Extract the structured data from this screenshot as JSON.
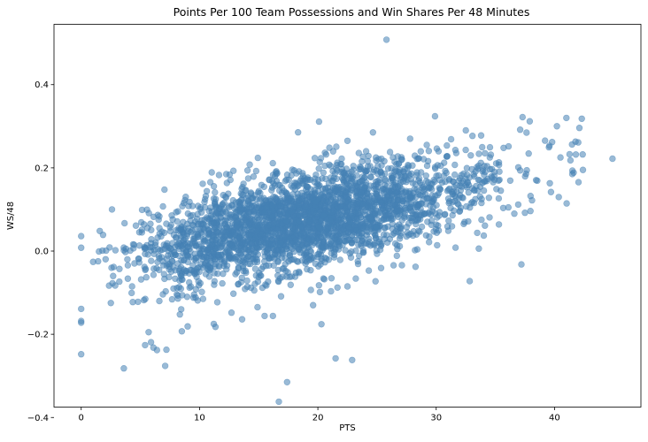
{
  "chart_data": {
    "type": "scatter",
    "title": "Points Per 100 Team Possessions and Win Shares Per 48 Minutes",
    "xlabel": "PTS",
    "ylabel": "WS/48",
    "xlim": [
      -2.3,
      47.3
    ],
    "ylim": [
      -0.375,
      0.545
    ],
    "x_ticks": [
      0,
      10,
      20,
      30,
      40
    ],
    "x_tick_labels": [
      "0",
      "10",
      "20",
      "30",
      "40"
    ],
    "y_ticks": [
      -0.4,
      -0.2,
      0.0,
      0.2,
      0.4
    ],
    "y_tick_labels": [
      "−0.4",
      "−0.2",
      "0.0",
      "0.2",
      "0.4"
    ],
    "grid": false,
    "marker_color": "#4682b4",
    "marker_alpha": 0.55,
    "cloud": {
      "trend_intercept": -0.035,
      "trend_slope": 0.0058,
      "x_center": 18,
      "x_spread": 6.5,
      "y_spread": 0.055,
      "x_min": 1,
      "x_max": 44,
      "count": 3000
    },
    "points": [
      {
        "x": 25.8,
        "y": 0.508
      },
      {
        "x": 16.7,
        "y": -0.362
      },
      {
        "x": 17.4,
        "y": -0.315
      },
      {
        "x": 3.6,
        "y": -0.282
      },
      {
        "x": 21.5,
        "y": -0.258
      },
      {
        "x": 22.9,
        "y": -0.262
      },
      {
        "x": 0.0,
        "y": -0.248
      },
      {
        "x": 0.0,
        "y": -0.172
      },
      {
        "x": 0.0,
        "y": -0.168
      },
      {
        "x": 0.0,
        "y": -0.139
      },
      {
        "x": 0.0,
        "y": 0.008
      },
      {
        "x": 0.0,
        "y": 0.036
      },
      {
        "x": 5.4,
        "y": -0.226
      },
      {
        "x": 5.9,
        "y": -0.219
      },
      {
        "x": 6.1,
        "y": -0.232
      },
      {
        "x": 6.4,
        "y": -0.238
      },
      {
        "x": 7.2,
        "y": -0.237
      },
      {
        "x": 7.1,
        "y": -0.276
      },
      {
        "x": 5.7,
        "y": -0.195
      },
      {
        "x": 8.5,
        "y": -0.193
      },
      {
        "x": 9.0,
        "y": -0.181
      },
      {
        "x": 11.2,
        "y": -0.175
      },
      {
        "x": 2.6,
        "y": 0.1
      },
      {
        "x": 1.5,
        "y": -0.001
      },
      {
        "x": 2.1,
        "y": 0.001
      },
      {
        "x": 2.5,
        "y": -0.125
      },
      {
        "x": 2.7,
        "y": -0.06
      },
      {
        "x": 3.9,
        "y": -0.02
      },
      {
        "x": 4.3,
        "y": -0.085
      },
      {
        "x": 4.8,
        "y": -0.122
      },
      {
        "x": 20.1,
        "y": 0.311
      },
      {
        "x": 29.9,
        "y": 0.324
      },
      {
        "x": 27.8,
        "y": 0.27
      },
      {
        "x": 32.5,
        "y": 0.29
      },
      {
        "x": 37.3,
        "y": 0.322
      },
      {
        "x": 37.9,
        "y": 0.312
      },
      {
        "x": 40.2,
        "y": 0.3
      },
      {
        "x": 41.0,
        "y": 0.32
      },
      {
        "x": 42.3,
        "y": 0.318
      },
      {
        "x": 44.9,
        "y": 0.222
      },
      {
        "x": 42.1,
        "y": 0.296
      },
      {
        "x": 41.8,
        "y": 0.232
      },
      {
        "x": 41.5,
        "y": 0.185
      },
      {
        "x": 42.4,
        "y": 0.195
      },
      {
        "x": 40.5,
        "y": 0.225
      },
      {
        "x": 39.8,
        "y": 0.262
      },
      {
        "x": 37.2,
        "y": -0.032
      },
      {
        "x": 33.6,
        "y": 0.006
      },
      {
        "x": 35.3,
        "y": 0.064
      },
      {
        "x": 36.1,
        "y": 0.105
      },
      {
        "x": 37.5,
        "y": 0.092
      },
      {
        "x": 38.1,
        "y": 0.122
      },
      {
        "x": 39.7,
        "y": 0.142
      },
      {
        "x": 39.6,
        "y": 0.163
      },
      {
        "x": 28.4,
        "y": 0.004
      },
      {
        "x": 27.1,
        "y": -0.034
      },
      {
        "x": 24.3,
        "y": -0.047
      },
      {
        "x": 22.5,
        "y": -0.085
      },
      {
        "x": 23.2,
        "y": -0.066
      },
      {
        "x": 19.6,
        "y": -0.13
      },
      {
        "x": 20.3,
        "y": -0.176
      },
      {
        "x": 15.5,
        "y": -0.156
      },
      {
        "x": 16.2,
        "y": -0.156
      },
      {
        "x": 13.6,
        "y": -0.164
      },
      {
        "x": 12.7,
        "y": -0.148
      },
      {
        "x": 14.9,
        "y": -0.135
      },
      {
        "x": 11.5,
        "y": -0.123
      },
      {
        "x": 10.3,
        "y": -0.115
      },
      {
        "x": 7.8,
        "y": -0.09
      },
      {
        "x": 6.6,
        "y": -0.12
      },
      {
        "x": 5.3,
        "y": -0.118
      },
      {
        "x": 5.5,
        "y": -0.063
      },
      {
        "x": 6.9,
        "y": -0.104
      },
      {
        "x": 8.8,
        "y": -0.052
      },
      {
        "x": 26.1,
        "y": 0.238
      },
      {
        "x": 29.2,
        "y": 0.255
      },
      {
        "x": 22.5,
        "y": 0.265
      },
      {
        "x": 33.8,
        "y": 0.278
      },
      {
        "x": 35.7,
        "y": 0.248
      }
    ]
  }
}
